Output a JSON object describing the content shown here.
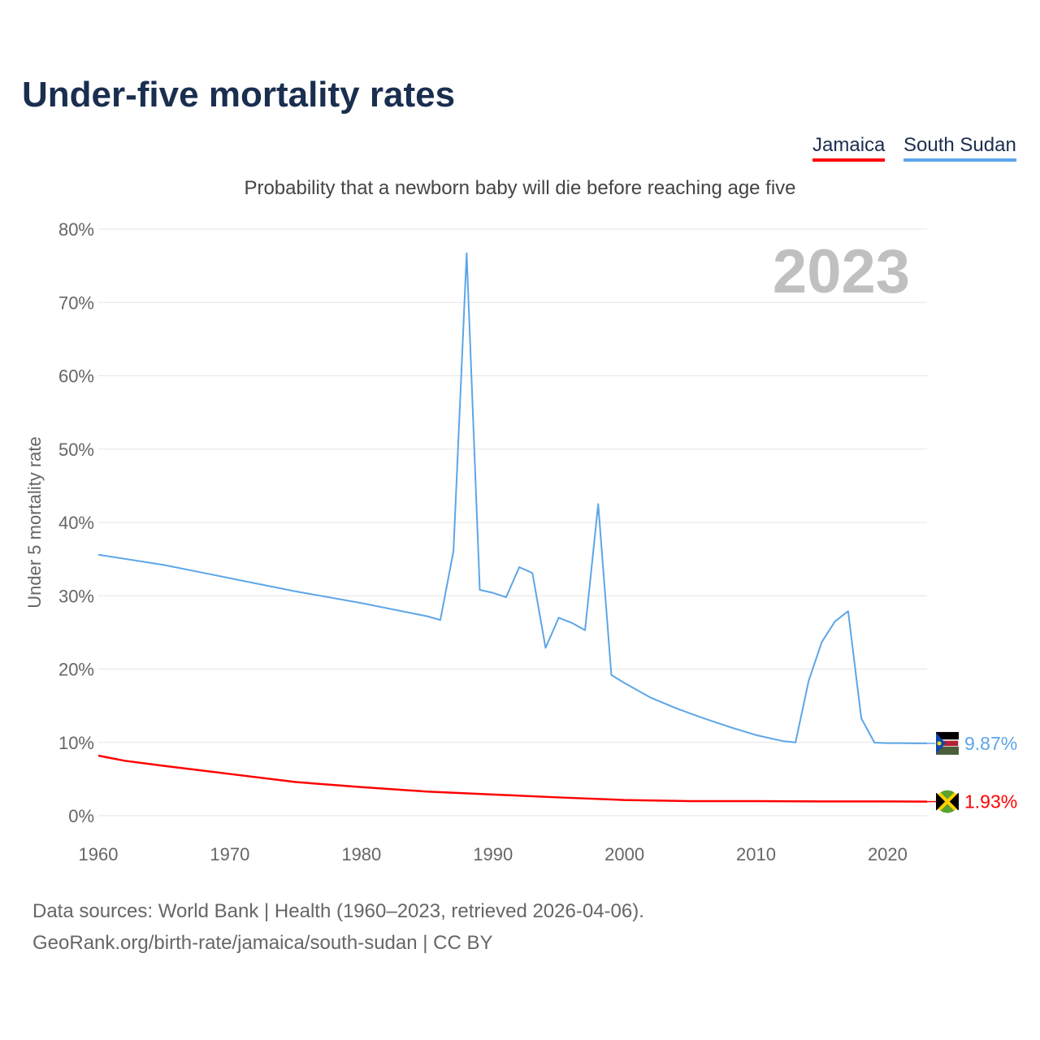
{
  "title": "Under-five mortality rates",
  "subtitle": "Probability that a newborn baby will die before reaching age five",
  "year_badge": "2023",
  "sources": [
    "Data sources: World Bank | Health (1960–2023, retrieved 2026-04-06).",
    "GeoRank.org/birth-rate/jamaica/south-sudan | CC BY"
  ],
  "chart_data": {
    "type": "line",
    "title": "Under-five mortality rates",
    "ylabel": "Under 5 mortality rate",
    "xlabel": "",
    "xlim": [
      1960,
      2023
    ],
    "ylim": [
      0,
      80
    ],
    "xticks": [
      "1960",
      "1970",
      "1980",
      "1990",
      "2000",
      "2010",
      "2020"
    ],
    "yticks": [
      "0%",
      "10%",
      "20%",
      "30%",
      "40%",
      "50%",
      "60%",
      "70%",
      "80%"
    ],
    "grid": true,
    "legend": "top-right",
    "series": [
      {
        "name": "Jamaica",
        "color": "#ff0000",
        "end_label": "1.93%",
        "x": [
          1960,
          1962,
          1965,
          1970,
          1975,
          1980,
          1985,
          1990,
          1995,
          2000,
          2005,
          2010,
          2015,
          2020,
          2023
        ],
        "values": [
          8.2,
          7.5,
          6.8,
          5.7,
          4.6,
          3.9,
          3.3,
          2.9,
          2.5,
          2.15,
          2.0,
          2.0,
          1.95,
          1.95,
          1.93
        ]
      },
      {
        "name": "South Sudan",
        "color": "#5ca6e8",
        "end_label": "9.87%",
        "x": [
          1960,
          1965,
          1970,
          1975,
          1980,
          1985,
          1986,
          1987,
          1988,
          1989,
          1990,
          1991,
          1992,
          1993,
          1994,
          1995,
          1996,
          1997,
          1998,
          1999,
          2000,
          2002,
          2004,
          2006,
          2008,
          2010,
          2012,
          2013,
          2014,
          2015,
          2016,
          2017,
          2018,
          2019,
          2020,
          2021,
          2022,
          2023
        ],
        "values": [
          35.6,
          34.2,
          32.4,
          30.6,
          29.0,
          27.2,
          26.7,
          36.1,
          76.7,
          30.8,
          30.4,
          29.8,
          33.9,
          33.1,
          22.9,
          27.0,
          26.3,
          25.3,
          42.5,
          19.2,
          18.1,
          16.1,
          14.6,
          13.3,
          12.1,
          11.0,
          10.2,
          10.0,
          18.4,
          23.7,
          26.5,
          27.9,
          13.3,
          9.97,
          9.9,
          9.9,
          9.87,
          9.87
        ]
      }
    ]
  }
}
